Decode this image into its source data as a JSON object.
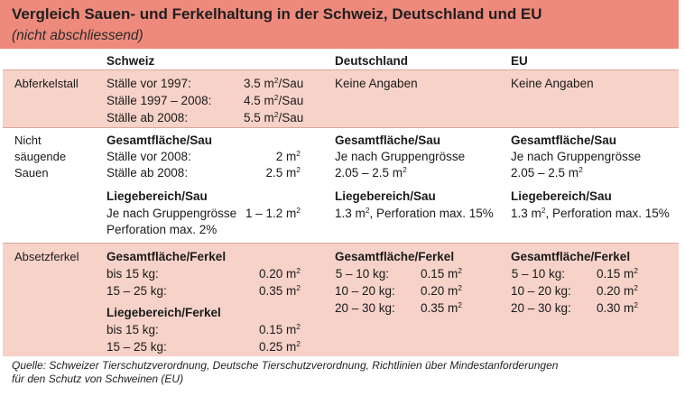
{
  "title": "Vergleich Sauen- und Ferkelhaltung in der Schweiz, Deutschland und EU",
  "subtitle": "(nicht abschliessend)",
  "columns": [
    "Schweiz",
    "Deutschland",
    "EU"
  ],
  "colors": {
    "title_bar": "#ee8a7c",
    "row_band": "#f7d2c8"
  },
  "sections": {
    "abferkelstall": {
      "label": "Abferkelstall",
      "schweiz": [
        {
          "text": "Ställe vor 1997:",
          "value": "3.5 m",
          "unit": "/Sau"
        },
        {
          "text": "Ställe 1997 – 2008:",
          "value": "4.5 m",
          "unit": "/Sau"
        },
        {
          "text": "Ställe ab 2008:",
          "value": "5.5 m",
          "unit": "/Sau"
        }
      ],
      "deutschland": "Keine Angaben",
      "eu": "Keine Angaben"
    },
    "sauen": {
      "label_lines": [
        "Nicht",
        "säugende",
        "Sauen"
      ],
      "schweiz": {
        "gesamt_header": "Gesamtfläche/Sau",
        "gesamt_rows": [
          {
            "text": "Ställe vor 2008:",
            "value": "2 m"
          },
          {
            "text": "Ställe ab 2008:",
            "value": "2.5 m"
          }
        ],
        "liege_header": "Liegebereich/Sau",
        "liege_line1": "Je nach Gruppengrösse",
        "liege_value": "1 – 1.2 m",
        "liege_line2": "Perforation max. 2%"
      },
      "deutschland": {
        "gesamt_header": "Gesamtfläche/Sau",
        "gesamt_line1": "Je nach Gruppengrösse",
        "gesamt_line2": "2.05 – 2.5 m",
        "liege_header": "Liegebereich/Sau",
        "liege_value": "1.3 m",
        "liege_suffix": ", Perforation max. 15%"
      },
      "eu": {
        "gesamt_header": "Gesamtfläche/Sau",
        "gesamt_line1": "Je nach Gruppengrösse",
        "gesamt_line2": "2.05 – 2.5 m",
        "liege_header": "Liegebereich/Sau",
        "liege_value": "1.3 m",
        "liege_suffix": ", Perforation max. 15%"
      }
    },
    "absetzferkel": {
      "label": "Absetzferkel",
      "schweiz": {
        "gesamt_header": "Gesamtfläche/Ferkel",
        "gesamt_rows": [
          {
            "text": "bis 15 kg:",
            "value": "0.20 m"
          },
          {
            "text": "15 – 25 kg:",
            "value": "0.35 m"
          }
        ],
        "liege_header": "Liegebereich/Ferkel",
        "liege_rows": [
          {
            "text": "bis 15 kg:",
            "value": "0.15 m"
          },
          {
            "text": "15 – 25 kg:",
            "value": "0.25 m"
          }
        ]
      },
      "deutschland": {
        "gesamt_header": "Gesamtfläche/Ferkel",
        "rows": [
          {
            "text": "5 – 10 kg:",
            "value": "0.15 m"
          },
          {
            "text": "10 – 20 kg:",
            "value": "0.20 m"
          },
          {
            "text": "20 – 30 kg:",
            "value": "0.35 m"
          }
        ]
      },
      "eu": {
        "gesamt_header": "Gesamtfläche/Ferkel",
        "rows": [
          {
            "text": "5 – 10 kg:",
            "value": "0.15 m"
          },
          {
            "text": "10 – 20 kg:",
            "value": "0.20 m"
          },
          {
            "text": "20 – 30 kg:",
            "value": "0.30 m"
          }
        ]
      }
    }
  },
  "source_line1": "Quelle: Schweizer Tierschutzverordnung, Deutsche Tierschutzverordnung, Richtlinien über Mindestanforderungen",
  "source_line2": "für den Schutz von Schweinen (EU)"
}
